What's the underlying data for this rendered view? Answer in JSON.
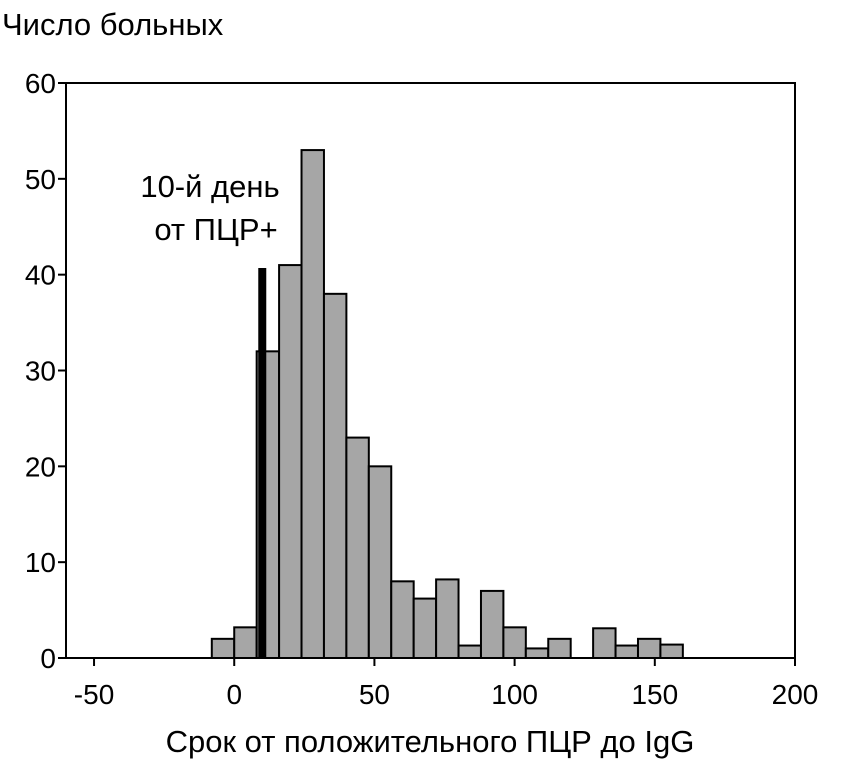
{
  "chart_data": {
    "type": "bar",
    "title": "",
    "ylabel": "Число больных",
    "xlabel": "Срок от положительного ПЦР до IgG",
    "xlim": [
      -60,
      200
    ],
    "ylim": [
      0,
      60
    ],
    "x_ticks": [
      -50,
      0,
      50,
      100,
      150,
      200
    ],
    "x_tick_labels": [
      "-50",
      "0",
      "50",
      "100",
      "150",
      "200"
    ],
    "y_ticks": [
      0,
      10,
      20,
      30,
      40,
      50,
      60
    ],
    "y_tick_labels": [
      "0",
      "10",
      "20",
      "30",
      "40",
      "50",
      "60"
    ],
    "bin_width": 8,
    "bar_color": "#a6a6a6",
    "bars": [
      {
        "x0": -8,
        "x1": 0,
        "value": 2
      },
      {
        "x0": 0,
        "x1": 8,
        "value": 3.2
      },
      {
        "x0": 8,
        "x1": 16,
        "value": 32
      },
      {
        "x0": 16,
        "x1": 24,
        "value": 41
      },
      {
        "x0": 24,
        "x1": 32,
        "value": 53
      },
      {
        "x0": 32,
        "x1": 40,
        "value": 38
      },
      {
        "x0": 40,
        "x1": 48,
        "value": 23
      },
      {
        "x0": 48,
        "x1": 56,
        "value": 20
      },
      {
        "x0": 56,
        "x1": 64,
        "value": 8
      },
      {
        "x0": 64,
        "x1": 72,
        "value": 6.2
      },
      {
        "x0": 72,
        "x1": 80,
        "value": 8.2
      },
      {
        "x0": 80,
        "x1": 88,
        "value": 1.3
      },
      {
        "x0": 88,
        "x1": 96,
        "value": 7
      },
      {
        "x0": 96,
        "x1": 104,
        "value": 3.2
      },
      {
        "x0": 104,
        "x1": 112,
        "value": 1
      },
      {
        "x0": 112,
        "x1": 120,
        "value": 2
      },
      {
        "x0": 128,
        "x1": 136,
        "value": 3.1
      },
      {
        "x0": 136,
        "x1": 144,
        "value": 1.3
      },
      {
        "x0": 144,
        "x1": 152,
        "value": 2
      },
      {
        "x0": 152,
        "x1": 160,
        "value": 1.4
      }
    ],
    "marker": {
      "x": 10,
      "value": 40.7,
      "color": "#000000"
    },
    "annotation": {
      "lines": [
        "10-й день",
        "от ПЦР+"
      ]
    }
  }
}
